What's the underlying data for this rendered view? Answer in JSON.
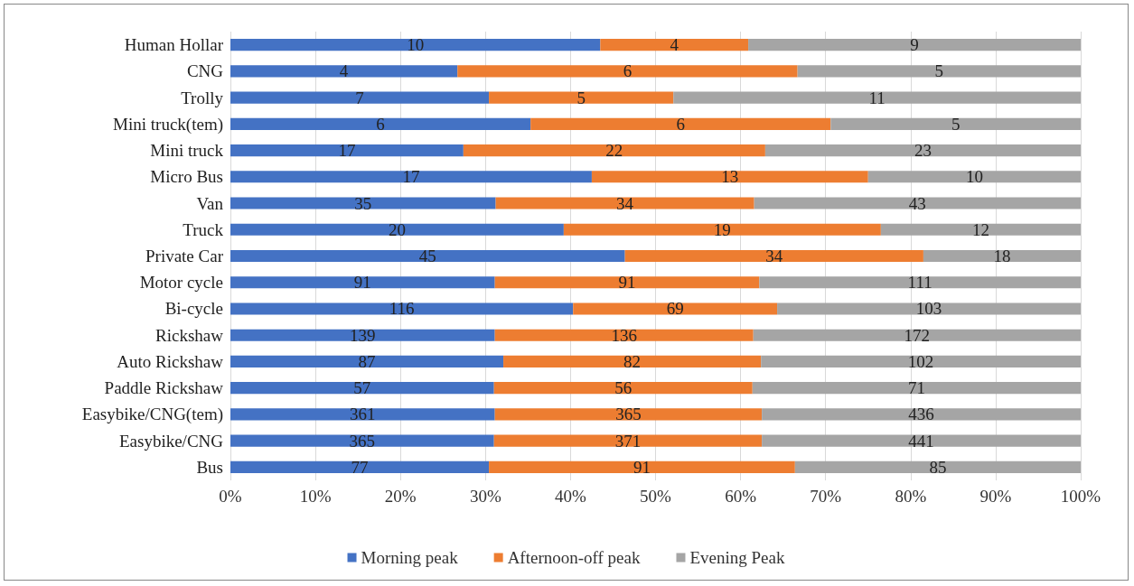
{
  "chart_data": {
    "type": "bar",
    "orientation": "horizontal",
    "stacked": true,
    "categories": [
      "Human Hollar",
      "CNG",
      "Trolly",
      "Mini truck(tem)",
      "Mini truck",
      "Micro Bus",
      "Van",
      "Truck",
      "Private Car",
      "Motor cycle",
      "Bi-cycle",
      "Rickshaw",
      "Auto Rickshaw",
      "Paddle Rickshaw",
      "Easybike/CNG(tem)",
      "Easybike/CNG",
      "Bus"
    ],
    "series": [
      {
        "name": "Morning peak",
        "color": "#4472c4",
        "values": [
          43.5,
          26.7,
          30.4,
          35.3,
          27.4,
          42.5,
          31.2,
          39.2,
          46.4,
          31.1,
          40.3,
          31.1,
          32.1,
          31.0,
          31.1,
          31.0,
          30.4
        ]
      },
      {
        "name": "Afternoon-off peak",
        "color": "#ed7d31",
        "values": [
          17.4,
          40.0,
          21.7,
          35.3,
          35.5,
          32.5,
          30.4,
          37.3,
          35.1,
          31.1,
          24.0,
          30.4,
          30.3,
          30.4,
          31.4,
          31.5,
          36.0
        ]
      },
      {
        "name": "Evening Peak",
        "color": "#a5a5a5",
        "values": [
          39.1,
          33.3,
          47.9,
          29.4,
          37.1,
          25.0,
          38.4,
          23.5,
          18.5,
          37.8,
          35.7,
          38.5,
          37.6,
          38.6,
          37.5,
          37.5,
          33.6
        ]
      }
    ],
    "annotations": [
      "10",
      "4",
      "9",
      "4",
      "6",
      "5",
      "7",
      "5",
      "11",
      "6",
      "6",
      "5",
      "17",
      "22",
      "23",
      "17",
      "13",
      "10",
      "35",
      "34",
      "43",
      "20",
      "19",
      "12",
      "45",
      "34",
      "18",
      "91",
      "91",
      "111",
      "116",
      "69",
      "103",
      "139",
      "136",
      "172",
      "87",
      "82",
      "102",
      "57",
      "56",
      "71",
      "361",
      "365",
      "436",
      "365",
      "371",
      "441",
      "77",
      "91",
      "85"
    ],
    "xlim": [
      0,
      100
    ],
    "xticks": [
      {
        "value": 0,
        "label": "0%"
      },
      {
        "value": 10,
        "label": "10%"
      },
      {
        "value": 20,
        "label": "20%"
      },
      {
        "value": 30,
        "label": "30%"
      },
      {
        "value": 40,
        "label": "40%"
      },
      {
        "value": 50,
        "label": "50%"
      },
      {
        "value": 60,
        "label": "60%"
      },
      {
        "value": 70,
        "label": "70%"
      },
      {
        "value": 80,
        "label": "80%"
      },
      {
        "value": 90,
        "label": "90%"
      },
      {
        "value": 100,
        "label": "100%"
      }
    ],
    "grid": "x",
    "legend": "bottom"
  }
}
